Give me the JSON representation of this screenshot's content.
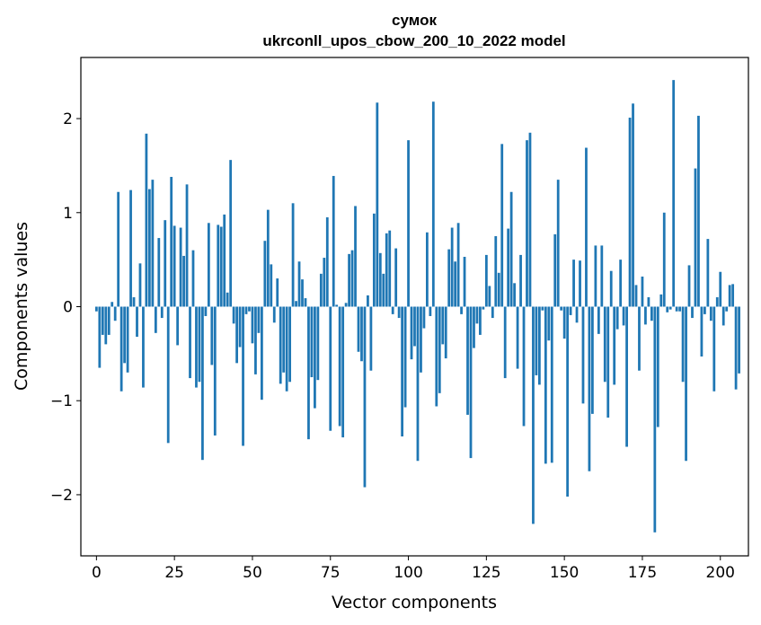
{
  "chart_data": {
    "type": "bar",
    "title": [
      "сумок",
      "ukrconll_upos_cbow_200_10_2022 model"
    ],
    "xlabel": "Vector components",
    "ylabel": "Components values",
    "xlim": [
      -5,
      209
    ],
    "ylim": [
      -2.65,
      2.65
    ],
    "xticks": [
      0,
      25,
      50,
      75,
      100,
      125,
      150,
      175,
      200
    ],
    "yticks": [
      -2,
      -1,
      0,
      1,
      2
    ],
    "xtick_labels": [
      "0",
      "25",
      "50",
      "75",
      "100",
      "125",
      "150",
      "175",
      "200"
    ],
    "ytick_labels": [
      "−2",
      "−1",
      "0",
      "1",
      "2"
    ],
    "bar_color": "#1f77b4",
    "grid": false,
    "values": [
      -0.05,
      -0.65,
      -0.3,
      -0.4,
      -0.3,
      0.05,
      -0.15,
      1.22,
      -0.9,
      -0.6,
      -0.7,
      1.24,
      0.1,
      -0.32,
      0.46,
      -0.86,
      1.84,
      1.25,
      1.35,
      -0.28,
      0.73,
      -0.12,
      0.92,
      -1.45,
      1.38,
      0.86,
      -0.41,
      0.84,
      0.54,
      1.3,
      -0.76,
      0.6,
      -0.86,
      -0.8,
      -1.63,
      -0.1,
      0.89,
      -0.62,
      -1.37,
      0.87,
      0.85,
      0.98,
      0.15,
      1.56,
      -0.18,
      -0.6,
      -0.43,
      -1.48,
      -0.08,
      -0.05,
      -0.39,
      -0.72,
      -0.28,
      -0.99,
      0.7,
      1.03,
      0.45,
      -0.17,
      0.3,
      -0.82,
      -0.7,
      -0.9,
      -0.8,
      1.1,
      0.06,
      0.48,
      0.29,
      0.09,
      -1.41,
      -0.75,
      -1.08,
      -0.78,
      0.35,
      0.52,
      0.95,
      -1.32,
      1.39,
      0.02,
      -1.27,
      -1.39,
      0.04,
      0.56,
      0.6,
      1.07,
      -0.48,
      -0.58,
      -1.92,
      0.12,
      -0.68,
      0.99,
      2.17,
      0.57,
      0.35,
      0.78,
      0.81,
      -0.08,
      0.62,
      -0.12,
      -1.38,
      -1.07,
      1.77,
      -0.56,
      -0.42,
      -1.64,
      -0.7,
      -0.23,
      0.79,
      -0.1,
      2.18,
      -1.06,
      -0.92,
      -0.4,
      -0.55,
      0.61,
      0.84,
      0.48,
      0.89,
      -0.08,
      0.53,
      -1.15,
      -1.61,
      -0.44,
      -0.18,
      -0.3,
      -0.03,
      0.55,
      0.22,
      -0.12,
      0.75,
      0.36,
      1.73,
      -0.76,
      0.83,
      1.22,
      0.25,
      -0.66,
      0.55,
      -1.27,
      1.77,
      1.85,
      -2.31,
      -0.73,
      -0.83,
      -0.04,
      -1.67,
      -0.36,
      -1.66,
      0.77,
      1.35,
      -0.04,
      -0.34,
      -2.02,
      -0.09,
      0.5,
      -0.17,
      0.49,
      -1.03,
      1.69,
      -1.75,
      -1.14,
      0.65,
      -0.29,
      0.65,
      -0.8,
      -1.18,
      0.38,
      -0.83,
      -0.24,
      0.5,
      -0.2,
      -1.49,
      2.01,
      2.16,
      0.23,
      -0.68,
      0.32,
      -0.19,
      0.1,
      -0.15,
      -2.4,
      -1.28,
      0.13,
      1.0,
      -0.06,
      -0.03,
      2.41,
      -0.05,
      -0.05,
      -0.8,
      -1.64,
      0.44,
      -0.12,
      1.47,
      2.03,
      -0.53,
      -0.08,
      0.72,
      -0.15,
      -0.9,
      0.1,
      0.37,
      -0.2,
      -0.05,
      0.23,
      0.24,
      -0.88,
      -0.71
    ]
  }
}
